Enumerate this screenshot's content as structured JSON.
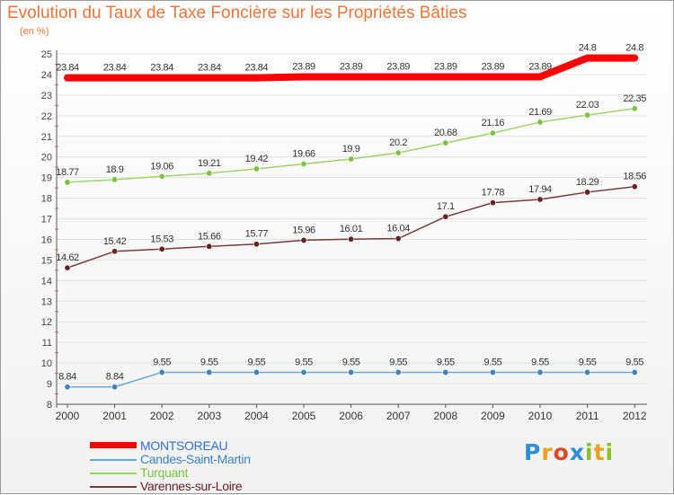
{
  "title": "Evolution du Taux de Taxe Foncière sur les Propriétés Bâties",
  "unit": "(en %)",
  "logo": {
    "letters": [
      {
        "ch": "P",
        "color": "#2e8fd8"
      },
      {
        "ch": "r",
        "color": "#e8a020"
      },
      {
        "ch": "o",
        "color": "#d94a2a"
      },
      {
        "ch": "x",
        "color": "#2e8fd8"
      },
      {
        "ch": "i",
        "color": "#8cbf2a"
      },
      {
        "ch": "t",
        "color": "#e8a020"
      },
      {
        "ch": "i",
        "color": "#8cbf2a"
      }
    ]
  },
  "chart_data": {
    "type": "line",
    "x": [
      "2000",
      "2001",
      "2002",
      "2003",
      "2004",
      "2005",
      "2006",
      "2007",
      "2008",
      "2009",
      "2010",
      "2011",
      "2012"
    ],
    "ylim": [
      8,
      25
    ],
    "yticks": [
      8,
      9,
      10,
      11,
      12,
      13,
      14,
      15,
      16,
      17,
      18,
      19,
      20,
      21,
      22,
      23,
      24,
      25
    ],
    "grid": "horizontal",
    "legend_position": "bottom-left",
    "series": [
      {
        "name": "MONTSOREAU",
        "color": "#ff0000",
        "width": 8,
        "values": [
          23.84,
          23.84,
          23.84,
          23.84,
          23.84,
          23.89,
          23.89,
          23.89,
          23.89,
          23.89,
          23.89,
          24.8,
          24.8
        ],
        "labels": [
          "23.84",
          "23.84",
          "23.84",
          "23.84",
          "23.84",
          "23.89",
          "23.89",
          "23.89",
          "23.89",
          "23.89",
          "23.89",
          "24.8",
          "24.8"
        ]
      },
      {
        "name": "Candes-Saint-Martin",
        "color": "#6ea7d2",
        "marker": "#3e82c0",
        "width": 1.5,
        "values": [
          8.84,
          8.84,
          9.55,
          9.55,
          9.55,
          9.55,
          9.55,
          9.55,
          9.55,
          9.55,
          9.55,
          9.55,
          9.55
        ],
        "labels": [
          "8.84",
          "8.84",
          "9.55",
          "9.55",
          "9.55",
          "9.55",
          "9.55",
          "9.55",
          "9.55",
          "9.55",
          "9.55",
          "9.55",
          "9.55"
        ]
      },
      {
        "name": "Turquant",
        "color": "#9ed468",
        "marker": "#7cc242",
        "width": 1.5,
        "values": [
          18.77,
          18.9,
          19.06,
          19.21,
          19.42,
          19.66,
          19.9,
          20.2,
          20.68,
          21.16,
          21.69,
          22.03,
          22.35
        ],
        "labels": [
          "18.77",
          "18.9",
          "19.06",
          "19.21",
          "19.42",
          "19.66",
          "19.9",
          "20.2",
          "20.68",
          "21.16",
          "21.69",
          "22.03",
          "22.35"
        ]
      },
      {
        "name": "Varennes-sur-Loire",
        "color": "#7a3a3a",
        "marker": "#6a2020",
        "width": 1.5,
        "values": [
          14.62,
          15.42,
          15.53,
          15.66,
          15.77,
          15.96,
          16.01,
          16.04,
          17.1,
          17.78,
          17.94,
          18.29,
          18.56
        ],
        "labels": [
          "14.62",
          "15.42",
          "15.53",
          "15.66",
          "15.77",
          "15.96",
          "16.01",
          "16.04",
          "17.1",
          "17.78",
          "17.94",
          "18.29",
          "18.56"
        ]
      }
    ]
  }
}
